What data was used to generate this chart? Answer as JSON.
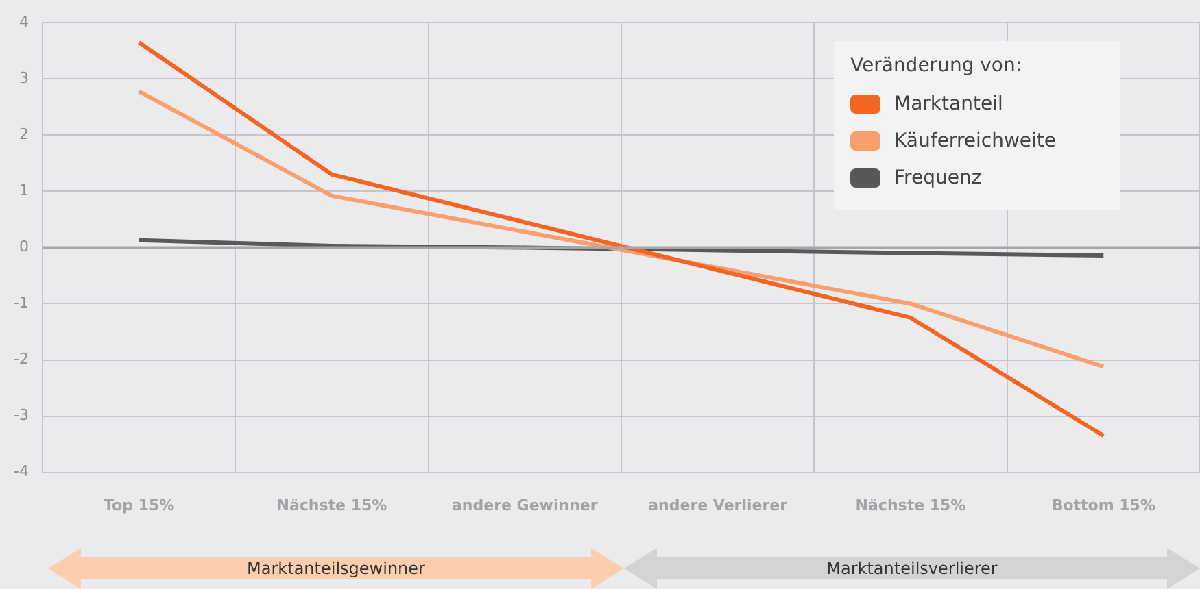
{
  "chart_data": {
    "type": "line",
    "categories": [
      "Top 15%",
      "Nächste 15%",
      "andere Gewinner",
      "andere Verlierer",
      "Nächste 15%",
      "Bottom 15%"
    ],
    "series": [
      {
        "name": "Marktanteil",
        "color": "#f26522",
        "values": [
          3.65,
          1.3,
          0.45,
          -0.4,
          -1.25,
          -3.35
        ]
      },
      {
        "name": "Käuferreichweite",
        "color": "#f7a06e",
        "values": [
          2.78,
          0.92,
          0.28,
          -0.36,
          -1.0,
          -2.12
        ]
      },
      {
        "name": "Frequenz",
        "color": "#58595b",
        "values": [
          0.13,
          0.03,
          0.0,
          -0.05,
          -0.1,
          -0.14
        ]
      }
    ],
    "ylim": [
      -4,
      4
    ],
    "yticks": [
      -4,
      -3,
      -2,
      -1,
      0,
      1,
      2,
      3,
      4
    ],
    "grid": true,
    "legend": "top right",
    "legend_title": "Veränderung von:",
    "ref_lines": [
      {
        "axis": "y",
        "value": 0,
        "color": "#a6a6a8"
      }
    ],
    "annotations": [
      "Marktanteilsgewinner",
      "Marktanteilsverlierer"
    ]
  }
}
